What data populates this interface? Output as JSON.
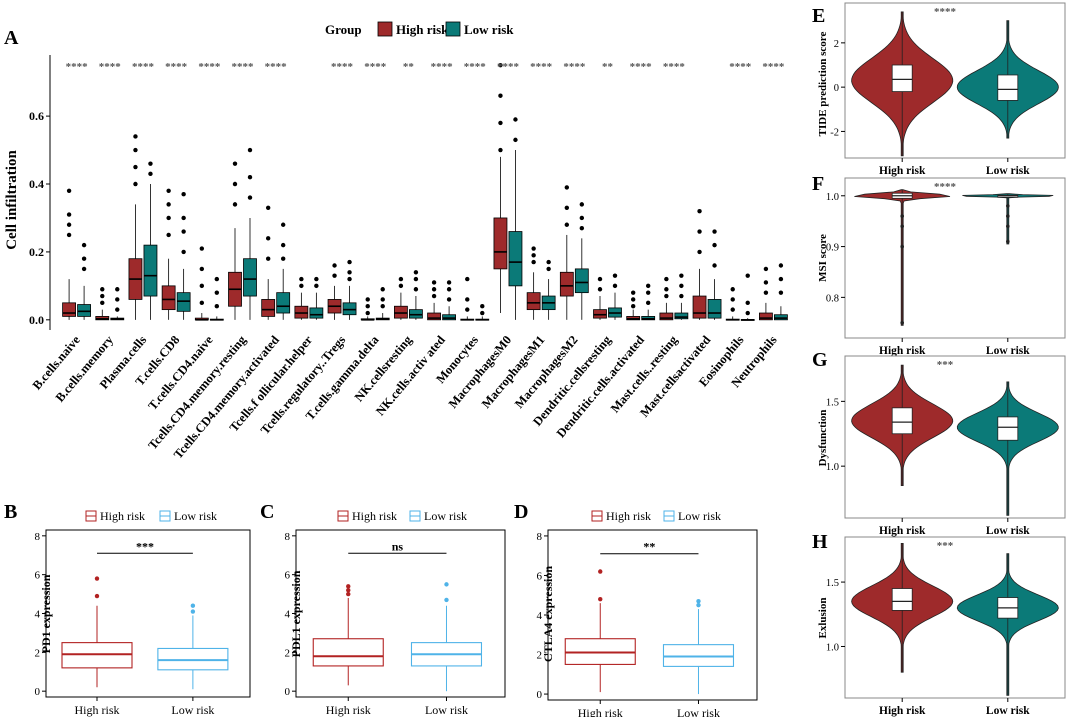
{
  "colors": {
    "high": "#9e2a2b",
    "low": "#0b7a78",
    "high_line": "#b22222",
    "low_line": "#4fb3e8",
    "axis": "#000000",
    "sig": "#555555"
  },
  "chart_data": [
    {
      "panel": "A",
      "type": "box",
      "legend_title": "Group",
      "legend": [
        "High risk",
        "Low risk"
      ],
      "ylabel": "Cell infiltration",
      "ylim": [
        -0.03,
        0.78
      ],
      "yticks": [
        "0.0",
        "0.2",
        "0.4",
        "0.6"
      ],
      "categories": [
        "B.cells.naive",
        "B.cells.memory",
        "Plasma.cells",
        "T.cells.CD8",
        "T.cells.CD4.naive",
        "Tcells.CD4.memory.resting",
        "Tcells.CD4.memory.activated",
        "Tcells.f ollicular.helper",
        "Tcells.regulatory..Tregs",
        "T.cells.gamma.delta",
        "NK.cellsresting",
        "NK.cells.activ ated",
        "Monocytes",
        "MacrophagesM0",
        "MacrophagesM1",
        "MacrophagesM2",
        "Dendritic.cellsresting",
        "Dendritic.cells.activated",
        "Mast.cells..resting",
        "Mast.cellsactivated",
        "Eosinophils",
        "Neutrophils"
      ],
      "significance": [
        "****",
        "****",
        "****",
        "****",
        "****",
        "****",
        "****",
        "",
        "****",
        "****",
        "**",
        "****",
        "****",
        "****",
        "****",
        "****",
        "**",
        "****",
        "****",
        "",
        "****",
        "****"
      ],
      "series": [
        {
          "name": "High risk",
          "boxes": [
            [
              0,
              0.01,
              0.02,
              0.05,
              0.12,
              [
                0.25,
                0.28,
                0.31,
                0.38
              ]
            ],
            [
              0,
              0,
              0.003,
              0.01,
              0.03,
              [
                0.05,
                0.07,
                0.09
              ]
            ],
            [
              0,
              0.06,
              0.12,
              0.18,
              0.34,
              [
                0.4,
                0.45,
                0.5,
                0.54
              ]
            ],
            [
              0,
              0.03,
              0.06,
              0.1,
              0.18,
              [
                0.25,
                0.3,
                0.34,
                0.38
              ]
            ],
            [
              0,
              0,
              0,
              0.005,
              0.02,
              [
                0.05,
                0.1,
                0.15,
                0.21
              ]
            ],
            [
              0,
              0.04,
              0.09,
              0.14,
              0.27,
              [
                0.34,
                0.4,
                0.46
              ]
            ],
            [
              0,
              0.01,
              0.03,
              0.06,
              0.12,
              [
                0.18,
                0.24,
                0.33
              ]
            ],
            [
              0,
              0.005,
              0.02,
              0.04,
              0.08,
              [
                0.1,
                0.12
              ]
            ],
            [
              0,
              0.02,
              0.04,
              0.06,
              0.1,
              [
                0.13,
                0.16
              ]
            ],
            [
              0,
              0,
              0,
              0.003,
              0.01,
              [
                0.02,
                0.04,
                0.06
              ]
            ],
            [
              0,
              0.005,
              0.02,
              0.04,
              0.08,
              [
                0.1,
                0.12
              ]
            ],
            [
              0,
              0,
              0.005,
              0.02,
              0.05,
              [
                0.07,
                0.09,
                0.11
              ]
            ],
            [
              0,
              0,
              0,
              0.002,
              0.01,
              [
                0.03,
                0.06,
                0.12
              ]
            ],
            [
              0.02,
              0.15,
              0.2,
              0.3,
              0.48,
              [
                0.5,
                0.58,
                0.66,
                0.75
              ]
            ],
            [
              0,
              0.03,
              0.05,
              0.08,
              0.14,
              [
                0.17,
                0.19,
                0.21
              ]
            ],
            [
              0,
              0.07,
              0.1,
              0.14,
              0.25,
              [
                0.28,
                0.33,
                0.39
              ]
            ],
            [
              0,
              0.005,
              0.015,
              0.03,
              0.07,
              [
                0.09,
                0.12
              ]
            ],
            [
              0,
              0,
              0.003,
              0.01,
              0.03,
              [
                0.04,
                0.06,
                0.08
              ]
            ],
            [
              0,
              0,
              0.005,
              0.02,
              0.05,
              [
                0.07,
                0.09,
                0.12
              ]
            ],
            [
              0,
              0.005,
              0.02,
              0.07,
              0.15,
              [
                0.2,
                0.26,
                0.32
              ]
            ],
            [
              0,
              0,
              0,
              0.002,
              0.01,
              [
                0.03,
                0.06,
                0.09
              ]
            ],
            [
              0,
              0,
              0.005,
              0.02,
              0.05,
              [
                0.08,
                0.11,
                0.15
              ]
            ]
          ]
        },
        {
          "name": "Low risk",
          "boxes": [
            [
              0,
              0.01,
              0.025,
              0.045,
              0.1,
              [
                0.15,
                0.18,
                0.22
              ]
            ],
            [
              0,
              0,
              0.002,
              0.005,
              0.01,
              [
                0.03,
                0.06,
                0.09
              ]
            ],
            [
              0,
              0.07,
              0.13,
              0.22,
              0.4,
              [
                0.43,
                0.46
              ]
            ],
            [
              0,
              0.025,
              0.055,
              0.08,
              0.15,
              [
                0.2,
                0.26,
                0.3,
                0.37
              ]
            ],
            [
              0,
              0,
              0,
              0.002,
              0.01,
              [
                0.04,
                0.08,
                0.12
              ]
            ],
            [
              0,
              0.07,
              0.12,
              0.18,
              0.3,
              [
                0.36,
                0.42,
                0.5
              ]
            ],
            [
              0,
              0.02,
              0.04,
              0.08,
              0.15,
              [
                0.18,
                0.22,
                0.28
              ]
            ],
            [
              0,
              0.005,
              0.015,
              0.035,
              0.08,
              [
                0.1,
                0.12
              ]
            ],
            [
              0,
              0.015,
              0.03,
              0.05,
              0.1,
              [
                0.12,
                0.14,
                0.17
              ]
            ],
            [
              0,
              0,
              0.002,
              0.005,
              0.02,
              [
                0.04,
                0.06,
                0.09
              ]
            ],
            [
              0,
              0.005,
              0.015,
              0.03,
              0.07,
              [
                0.09,
                0.12,
                0.14
              ]
            ],
            [
              0,
              0,
              0.005,
              0.015,
              0.04,
              [
                0.06,
                0.09,
                0.11
              ]
            ],
            [
              0,
              0,
              0,
              0.002,
              0.01,
              [
                0.02,
                0.04
              ]
            ],
            [
              0,
              0.1,
              0.17,
              0.26,
              0.5,
              [
                0.53,
                0.59
              ]
            ],
            [
              0,
              0.03,
              0.05,
              0.07,
              0.12,
              [
                0.15,
                0.17
              ]
            ],
            [
              0,
              0.08,
              0.11,
              0.15,
              0.24,
              [
                0.27,
                0.3,
                0.34
              ]
            ],
            [
              0,
              0.008,
              0.02,
              0.035,
              0.08,
              [
                0.1,
                0.13
              ]
            ],
            [
              0,
              0,
              0.003,
              0.01,
              0.03,
              [
                0.05,
                0.08,
                0.1
              ]
            ],
            [
              0,
              0.003,
              0.008,
              0.02,
              0.05,
              [
                0.07,
                0.1,
                0.13
              ]
            ],
            [
              0,
              0.005,
              0.02,
              0.06,
              0.12,
              [
                0.16,
                0.22,
                0.26
              ]
            ],
            [
              0,
              0,
              0,
              0.001,
              0.005,
              [
                0.02,
                0.05,
                0.13
              ]
            ],
            [
              0,
              0,
              0.005,
              0.015,
              0.04,
              [
                0.08,
                0.12,
                0.16
              ]
            ]
          ]
        }
      ]
    },
    {
      "panel": "B",
      "type": "box",
      "legend": [
        "High risk",
        "Low risk"
      ],
      "ylabel": "PD1 expression",
      "ylim": [
        -0.3,
        8.3
      ],
      "yticks": [
        "0",
        "2",
        "4",
        "6",
        "8"
      ],
      "categories": [
        "High risk",
        "Low risk"
      ],
      "significance": "***",
      "boxes": [
        [
          0.2,
          1.2,
          1.9,
          2.5,
          4.4,
          [
            4.9,
            5.8
          ]
        ],
        [
          0.1,
          1.1,
          1.6,
          2.2,
          3.9,
          [
            4.1,
            4.4
          ]
        ]
      ]
    },
    {
      "panel": "C",
      "type": "box",
      "legend": [
        "High risk",
        "Low risk"
      ],
      "ylabel": "PDL1 expression",
      "ylim": [
        -0.3,
        8.3
      ],
      "yticks": [
        "0",
        "2",
        "4",
        "6",
        "8"
      ],
      "categories": [
        "High risk",
        "Low risk"
      ],
      "significance": "ns",
      "boxes": [
        [
          0.3,
          1.3,
          1.8,
          2.7,
          4.8,
          [
            5.0,
            5.2,
            5.4
          ]
        ],
        [
          0.0,
          1.3,
          1.9,
          2.5,
          4.4,
          [
            4.7,
            5.5
          ]
        ]
      ]
    },
    {
      "panel": "D",
      "type": "box",
      "legend": [
        "High risk",
        "Low risk"
      ],
      "ylabel": "CTLA4 expression",
      "ylim": [
        -0.3,
        8.3
      ],
      "yticks": [
        "0",
        "2",
        "4",
        "6",
        "8"
      ],
      "categories": [
        "High risk",
        "Low risk"
      ],
      "significance": "**",
      "boxes": [
        [
          0.1,
          1.5,
          2.1,
          2.8,
          4.6,
          [
            4.8,
            6.2
          ]
        ],
        [
          0.0,
          1.4,
          1.9,
          2.5,
          4.3,
          [
            4.5,
            4.7
          ]
        ]
      ]
    },
    {
      "panel": "E",
      "type": "violin",
      "ylabel": "TIDE prediction score",
      "ylim": [
        -3.2,
        3.8
      ],
      "yticks": [
        "-2",
        "0",
        "2"
      ],
      "ytick_values": [
        -2,
        0,
        2
      ],
      "categories": [
        "High risk",
        "Low risk"
      ],
      "significance": "****",
      "violins": [
        {
          "min": -3.1,
          "q1": -0.2,
          "median": 0.35,
          "q3": 1.0,
          "max": 3.4,
          "center": 0.3,
          "spread": 1.0
        },
        {
          "min": -2.3,
          "q1": -0.6,
          "median": -0.1,
          "q3": 0.55,
          "max": 3.0,
          "center": 0.0,
          "spread": 0.75
        }
      ]
    },
    {
      "panel": "F",
      "type": "violin",
      "ylabel": "MSI score",
      "ylim": [
        0.72,
        1.035
      ],
      "yticks": [
        "0.8",
        "0.9",
        "1.0"
      ],
      "ytick_values": [
        0.8,
        0.9,
        1.0
      ],
      "categories": [
        "High risk",
        "Low risk"
      ],
      "significance": "****",
      "violins": [
        {
          "min": 0.745,
          "q1": 0.995,
          "median": 1.0,
          "q3": 1.005,
          "max": 1.012,
          "center": 1.0,
          "spread": 0.004,
          "outliers": [
            0.96,
            0.94,
            0.9,
            0.75
          ]
        },
        {
          "min": 0.905,
          "q1": 0.999,
          "median": 1.0,
          "q3": 1.001,
          "max": 1.004,
          "center": 1.0,
          "spread": 0.0015,
          "outliers": [
            0.98,
            0.96,
            0.94,
            0.91
          ]
        }
      ]
    },
    {
      "panel": "G",
      "type": "violin",
      "ylabel": "Dysfunction",
      "ylim": [
        0.6,
        1.85
      ],
      "yticks": [
        "1.0",
        "1.5"
      ],
      "ytick_values": [
        1.0,
        1.5
      ],
      "categories": [
        "High risk",
        "Low risk"
      ],
      "significance": "***",
      "violins": [
        {
          "min": 0.85,
          "q1": 1.25,
          "median": 1.34,
          "q3": 1.45,
          "max": 1.78,
          "center": 1.35,
          "spread": 0.13
        },
        {
          "min": 0.62,
          "q1": 1.2,
          "median": 1.3,
          "q3": 1.38,
          "max": 1.65,
          "center": 1.3,
          "spread": 0.11
        }
      ]
    },
    {
      "panel": "H",
      "type": "violin",
      "ylabel": "Exlusion",
      "ylim": [
        0.6,
        1.85
      ],
      "yticks": [
        "1.0",
        "1.5"
      ],
      "ytick_values": [
        1.0,
        1.5
      ],
      "categories": [
        "High risk",
        "Low risk"
      ],
      "significance": "***",
      "violins": [
        {
          "min": 0.8,
          "q1": 1.28,
          "median": 1.35,
          "q3": 1.45,
          "max": 1.8,
          "center": 1.35,
          "spread": 0.12
        },
        {
          "min": 0.62,
          "q1": 1.22,
          "median": 1.3,
          "q3": 1.38,
          "max": 1.72,
          "center": 1.3,
          "spread": 0.1
        }
      ]
    }
  ]
}
